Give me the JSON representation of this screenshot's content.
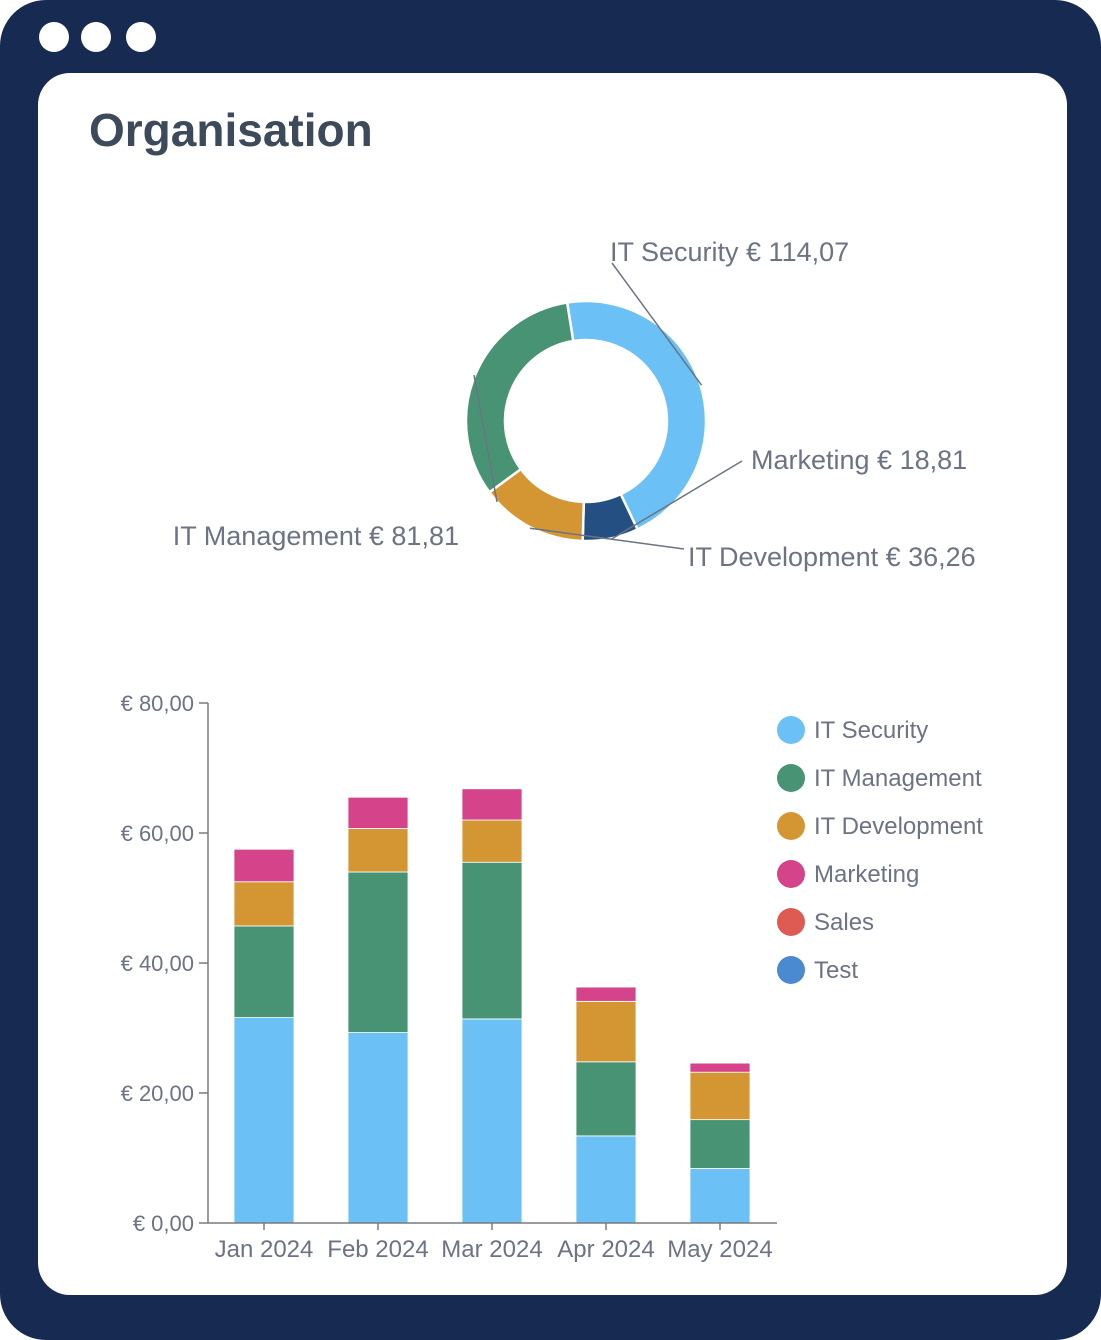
{
  "window": {
    "controls": [
      "window-dot-1",
      "window-dot-2",
      "window-dot-3"
    ]
  },
  "page": {
    "title": "Organisation"
  },
  "colors": {
    "frame": "#172a52",
    "title": "#3d4a5b",
    "label": "#6b7384",
    "axis": "#7a7a7a",
    "it_security": "#6bc0f5",
    "it_management": "#479374",
    "it_development": "#d49533",
    "marketing": "#d5448a",
    "sales": "#de5b53",
    "test": "#4a8ad0",
    "marketing_donut": "#234f83"
  },
  "chart_data": [
    {
      "type": "pie",
      "variant": "donut",
      "title": "",
      "slices": [
        {
          "name": "IT Security",
          "value": 114.07,
          "label": "IT Security € 114,07",
          "color": "#6bc0f5"
        },
        {
          "name": "Marketing",
          "value": 18.81,
          "label": "Marketing € 18,81",
          "color": "#234f83"
        },
        {
          "name": "IT Development",
          "value": 36.26,
          "label": "IT Development € 36,26",
          "color": "#d49533"
        },
        {
          "name": "IT Management",
          "value": 81.81,
          "label": "IT Management € 81,81",
          "color": "#479374"
        }
      ]
    },
    {
      "type": "bar",
      "stacked": true,
      "title": "",
      "xlabel": "",
      "ylabel": "",
      "categories": [
        "Jan 2024",
        "Feb 2024",
        "Mar 2024",
        "Apr 2024",
        "May 2024"
      ],
      "ylim": [
        0,
        80
      ],
      "yticks": [
        0,
        20,
        40,
        60,
        80
      ],
      "ytick_labels": [
        "€ 0,00",
        "€ 20,00",
        "€ 40,00",
        "€ 60,00",
        "€ 80,00"
      ],
      "grid": false,
      "legend_position": "right",
      "series": [
        {
          "name": "IT Security",
          "color": "#6bc0f5",
          "values": [
            31.6,
            29.3,
            31.4,
            13.4,
            8.4
          ]
        },
        {
          "name": "IT Management",
          "color": "#479374",
          "values": [
            14.1,
            24.7,
            24.1,
            11.4,
            7.5
          ]
        },
        {
          "name": "IT Development",
          "color": "#d49533",
          "values": [
            6.8,
            6.7,
            6.5,
            9.3,
            7.3
          ]
        },
        {
          "name": "Marketing",
          "color": "#d5448a",
          "values": [
            5.0,
            4.8,
            4.8,
            2.2,
            1.4
          ]
        },
        {
          "name": "Sales",
          "color": "#de5b53",
          "values": [
            0,
            0,
            0,
            0,
            0
          ]
        },
        {
          "name": "Test",
          "color": "#4a8ad0",
          "values": [
            0,
            0,
            0,
            0,
            0
          ]
        }
      ]
    }
  ]
}
